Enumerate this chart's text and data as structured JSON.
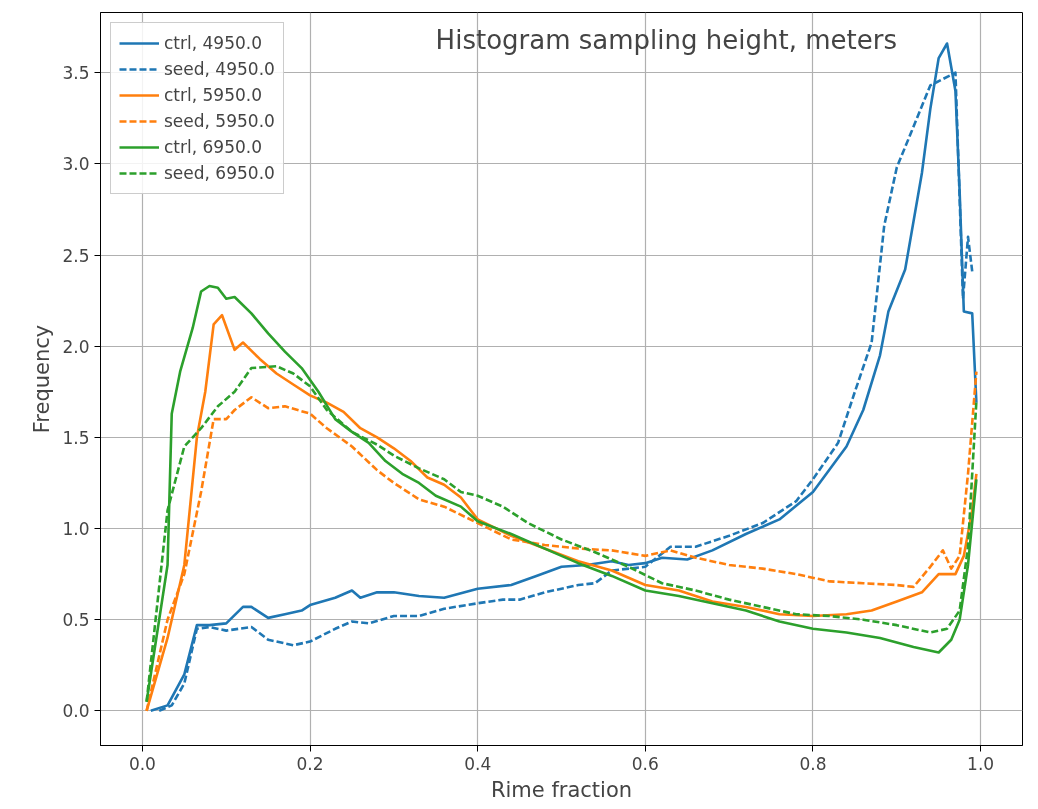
{
  "chart_data": {
    "type": "line",
    "title": "Histogram sampling height, meters",
    "xlabel": "Rime fraction",
    "ylabel": "Frequency",
    "xlim": [
      -0.05,
      1.05
    ],
    "ylim": [
      -0.19,
      3.83
    ],
    "xticks": [
      {
        "value": 0,
        "label": "0.0"
      },
      0.2,
      0.4,
      0.6,
      0.8,
      {
        "value": 1,
        "label": "1.0"
      }
    ],
    "yticks": [
      {
        "value": 0,
        "label": "0.0"
      },
      0.5,
      {
        "value": 1,
        "label": "1.0"
      },
      1.5,
      {
        "value": 2,
        "label": "2.0"
      },
      2.5,
      {
        "value": 3,
        "label": "3.0"
      },
      3.5
    ],
    "grid": true,
    "legend": "top left",
    "series": [
      {
        "name": "ctrl, 4950.0",
        "color": "#1f77b4",
        "line_style": "solid",
        "x": [
          0.01,
          0.03,
          0.05,
          0.065,
          0.08,
          0.1,
          0.12,
          0.13,
          0.15,
          0.17,
          0.19,
          0.2,
          0.23,
          0.25,
          0.26,
          0.28,
          0.3,
          0.33,
          0.36,
          0.4,
          0.44,
          0.47,
          0.5,
          0.53,
          0.56,
          0.58,
          0.6,
          0.62,
          0.65,
          0.68,
          0.72,
          0.76,
          0.8,
          0.84,
          0.86,
          0.88,
          0.89,
          0.91,
          0.93,
          0.94,
          0.95,
          0.96,
          0.97,
          0.975,
          0.98,
          0.99,
          0.995
        ],
        "values": [
          0,
          0.03,
          0.2,
          0.47,
          0.47,
          0.48,
          0.57,
          0.57,
          0.51,
          0.53,
          0.55,
          0.58,
          0.62,
          0.66,
          0.62,
          0.65,
          0.65,
          0.63,
          0.62,
          0.67,
          0.69,
          0.74,
          0.79,
          0.8,
          0.82,
          0.8,
          0.81,
          0.84,
          0.83,
          0.88,
          0.97,
          1.05,
          1.2,
          1.45,
          1.65,
          1.95,
          2.19,
          2.42,
          2.95,
          3.3,
          3.58,
          3.66,
          3.4,
          2.85,
          2.19,
          2.18,
          1.69
        ]
      },
      {
        "name": "seed, 4950.0",
        "color": "#1f77b4",
        "line_style": "dashed",
        "x": [
          0.02,
          0.035,
          0.05,
          0.065,
          0.08,
          0.1,
          0.13,
          0.15,
          0.18,
          0.2,
          0.23,
          0.25,
          0.27,
          0.3,
          0.33,
          0.36,
          0.4,
          0.43,
          0.45,
          0.48,
          0.52,
          0.54,
          0.56,
          0.6,
          0.63,
          0.66,
          0.7,
          0.74,
          0.78,
          0.8,
          0.83,
          0.85,
          0.87,
          0.885,
          0.9,
          0.917,
          0.94,
          0.97,
          0.979,
          0.985,
          0.99
        ],
        "values": [
          0,
          0.03,
          0.15,
          0.45,
          0.46,
          0.44,
          0.46,
          0.39,
          0.36,
          0.38,
          0.45,
          0.49,
          0.48,
          0.52,
          0.52,
          0.56,
          0.59,
          0.61,
          0.61,
          0.65,
          0.69,
          0.7,
          0.77,
          0.79,
          0.9,
          0.9,
          0.96,
          1.03,
          1.15,
          1.27,
          1.47,
          1.75,
          2.02,
          2.66,
          2.98,
          3.17,
          3.43,
          3.5,
          2.26,
          2.6,
          2.41
        ]
      },
      {
        "name": "ctrl, 5950.0",
        "color": "#ff7f0e",
        "line_style": "solid",
        "x": [
          0.005,
          0.03,
          0.05,
          0.065,
          0.075,
          0.085,
          0.095,
          0.11,
          0.12,
          0.14,
          0.16,
          0.18,
          0.2,
          0.22,
          0.24,
          0.26,
          0.28,
          0.3,
          0.32,
          0.34,
          0.36,
          0.38,
          0.4,
          0.44,
          0.48,
          0.52,
          0.56,
          0.6,
          0.64,
          0.68,
          0.72,
          0.76,
          0.8,
          0.84,
          0.87,
          0.9,
          0.93,
          0.95,
          0.97,
          0.98,
          0.99,
          0.995
        ],
        "values": [
          0,
          0.4,
          0.8,
          1.5,
          1.75,
          2.12,
          2.17,
          1.98,
          2.02,
          1.93,
          1.85,
          1.79,
          1.73,
          1.69,
          1.64,
          1.55,
          1.5,
          1.44,
          1.37,
          1.28,
          1.24,
          1.17,
          1.05,
          0.96,
          0.89,
          0.82,
          0.77,
          0.69,
          0.66,
          0.6,
          0.57,
          0.53,
          0.52,
          0.53,
          0.55,
          0.6,
          0.65,
          0.75,
          0.75,
          0.85,
          1.1,
          1.3
        ]
      },
      {
        "name": "seed, 5950.0",
        "color": "#ff7f0e",
        "line_style": "dashed",
        "x": [
          0.005,
          0.03,
          0.05,
          0.07,
          0.085,
          0.1,
          0.11,
          0.13,
          0.15,
          0.17,
          0.2,
          0.22,
          0.25,
          0.28,
          0.3,
          0.33,
          0.36,
          0.4,
          0.44,
          0.48,
          0.52,
          0.56,
          0.6,
          0.63,
          0.66,
          0.7,
          0.74,
          0.78,
          0.82,
          0.86,
          0.9,
          0.92,
          0.94,
          0.955,
          0.965,
          0.975,
          0.985,
          0.995
        ],
        "values": [
          0,
          0.5,
          0.75,
          1.2,
          1.6,
          1.6,
          1.65,
          1.72,
          1.66,
          1.67,
          1.63,
          1.55,
          1.45,
          1.32,
          1.25,
          1.16,
          1.12,
          1.03,
          0.94,
          0.91,
          0.89,
          0.88,
          0.85,
          0.88,
          0.84,
          0.8,
          0.78,
          0.75,
          0.71,
          0.7,
          0.69,
          0.68,
          0.79,
          0.88,
          0.78,
          0.85,
          1.3,
          1.86
        ]
      },
      {
        "name": "ctrl, 6950.0",
        "color": "#2ca02c",
        "line_style": "solid",
        "x": [
          0.005,
          0.03,
          0.035,
          0.045,
          0.06,
          0.07,
          0.08,
          0.09,
          0.1,
          0.11,
          0.13,
          0.15,
          0.17,
          0.19,
          0.21,
          0.23,
          0.25,
          0.27,
          0.29,
          0.31,
          0.33,
          0.35,
          0.38,
          0.4,
          0.44,
          0.48,
          0.52,
          0.56,
          0.6,
          0.64,
          0.68,
          0.72,
          0.76,
          0.8,
          0.84,
          0.88,
          0.92,
          0.95,
          0.965,
          0.975,
          0.985,
          0.995
        ],
        "values": [
          0.05,
          0.8,
          1.63,
          1.86,
          2.1,
          2.3,
          2.33,
          2.32,
          2.26,
          2.27,
          2.18,
          2.07,
          1.97,
          1.88,
          1.75,
          1.6,
          1.53,
          1.47,
          1.37,
          1.3,
          1.25,
          1.18,
          1.12,
          1.04,
          0.97,
          0.89,
          0.81,
          0.74,
          0.66,
          0.63,
          0.59,
          0.55,
          0.49,
          0.45,
          0.43,
          0.4,
          0.35,
          0.32,
          0.39,
          0.5,
          0.8,
          1.27
        ]
      },
      {
        "name": "seed, 6950.0",
        "color": "#2ca02c",
        "line_style": "dashed",
        "x": [
          0.005,
          0.03,
          0.05,
          0.07,
          0.09,
          0.11,
          0.13,
          0.16,
          0.18,
          0.2,
          0.22,
          0.25,
          0.28,
          0.3,
          0.33,
          0.36,
          0.38,
          0.4,
          0.43,
          0.46,
          0.5,
          0.54,
          0.58,
          0.62,
          0.66,
          0.7,
          0.74,
          0.78,
          0.82,
          0.86,
          0.9,
          0.94,
          0.96,
          0.975,
          0.985,
          0.995
        ],
        "values": [
          0.05,
          1.1,
          1.45,
          1.55,
          1.67,
          1.75,
          1.88,
          1.89,
          1.85,
          1.78,
          1.65,
          1.53,
          1.46,
          1.4,
          1.33,
          1.27,
          1.2,
          1.18,
          1.12,
          1.03,
          0.94,
          0.87,
          0.79,
          0.7,
          0.66,
          0.61,
          0.57,
          0.53,
          0.52,
          0.5,
          0.47,
          0.43,
          0.45,
          0.55,
          0.9,
          1.7
        ]
      }
    ]
  }
}
